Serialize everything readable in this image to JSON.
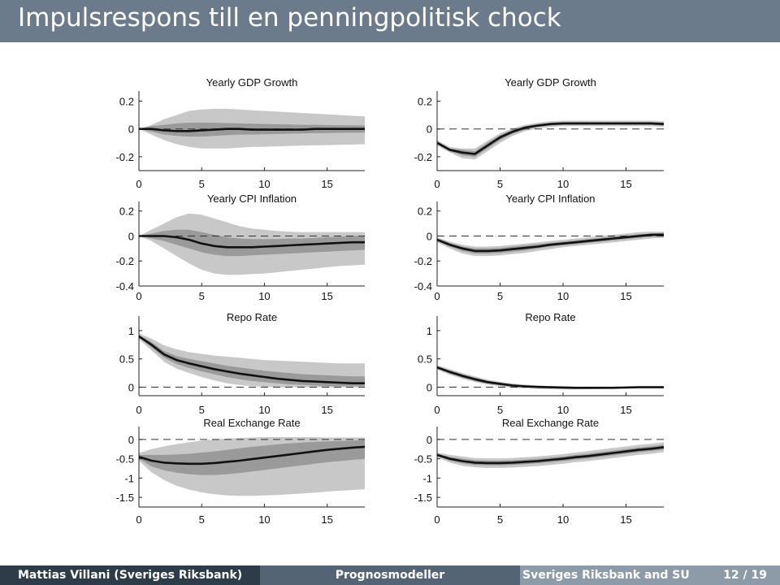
{
  "slide": {
    "title": "Impulsrespons till en penningpolitisk chock",
    "footer": {
      "author": "Mattias Villani (Sveriges Riksbank)",
      "course": "Prognosmodeller",
      "institution": "Sveriges Riksbank and SU",
      "page": "12 / 19"
    }
  },
  "colors": {
    "header": "#6b7b8c",
    "band_outer": "#c8c8c8",
    "band_inner": "#9a9a9a",
    "line": "#111111"
  },
  "chart_data": [
    {
      "type": "line",
      "title": "Yearly GDP Growth",
      "ylim": [
        -0.3,
        0.25
      ],
      "yticks": [
        -0.2,
        0,
        0.2
      ],
      "yticklabels": [
        "-0.2",
        "0",
        "0.2"
      ],
      "xticks": [
        0,
        5,
        10,
        15
      ],
      "xlim": [
        0,
        18
      ],
      "x": [
        0,
        1,
        2,
        3,
        4,
        5,
        6,
        7,
        8,
        9,
        10,
        11,
        12,
        13,
        14,
        15,
        16,
        17,
        18
      ],
      "median": [
        0,
        0,
        -0.01,
        -0.015,
        -0.015,
        -0.01,
        -0.005,
        0,
        0,
        -0.005,
        -0.005,
        -0.005,
        -0.005,
        -0.005,
        0,
        0,
        0,
        0,
        0
      ],
      "inner_low": [
        0,
        -0.02,
        -0.04,
        -0.05,
        -0.055,
        -0.055,
        -0.05,
        -0.045,
        -0.04,
        -0.04,
        -0.038,
        -0.036,
        -0.034,
        -0.032,
        -0.03,
        -0.03,
        -0.028,
        -0.027,
        -0.026
      ],
      "inner_high": [
        0,
        0.02,
        0.03,
        0.04,
        0.045,
        0.045,
        0.045,
        0.042,
        0.04,
        0.038,
        0.036,
        0.034,
        0.032,
        0.03,
        0.03,
        0.028,
        0.027,
        0.026,
        0.025
      ],
      "outer_low": [
        0,
        -0.04,
        -0.08,
        -0.11,
        -0.13,
        -0.14,
        -0.14,
        -0.14,
        -0.135,
        -0.13,
        -0.128,
        -0.125,
        -0.122,
        -0.12,
        -0.118,
        -0.116,
        -0.114,
        -0.112,
        -0.11
      ],
      "outer_high": [
        0,
        0.03,
        0.07,
        0.1,
        0.13,
        0.14,
        0.145,
        0.145,
        0.14,
        0.135,
        0.13,
        0.125,
        0.12,
        0.115,
        0.11,
        0.105,
        0.1,
        0.095,
        0.09
      ]
    },
    {
      "type": "line",
      "title": "Yearly GDP Growth",
      "ylim": [
        -0.3,
        0.25
      ],
      "yticks": [
        -0.2,
        0,
        0.2
      ],
      "yticklabels": [
        "-0.2",
        "0",
        "0.2"
      ],
      "xticks": [
        0,
        5,
        10,
        15
      ],
      "xlim": [
        0,
        18
      ],
      "x": [
        0,
        1,
        2,
        3,
        4,
        5,
        6,
        7,
        8,
        9,
        10,
        11,
        12,
        13,
        14,
        15,
        16,
        17,
        18
      ],
      "median": [
        -0.1,
        -0.15,
        -0.17,
        -0.18,
        -0.12,
        -0.06,
        -0.02,
        0.01,
        0.025,
        0.035,
        0.04,
        0.04,
        0.04,
        0.04,
        0.04,
        0.04,
        0.04,
        0.04,
        0.035
      ],
      "inner_low": [
        -0.11,
        -0.16,
        -0.19,
        -0.2,
        -0.14,
        -0.08,
        -0.035,
        -0.005,
        0.015,
        0.025,
        0.03,
        0.03,
        0.03,
        0.03,
        0.03,
        0.03,
        0.03,
        0.03,
        0.025
      ],
      "inner_high": [
        -0.09,
        -0.14,
        -0.15,
        -0.16,
        -0.1,
        -0.045,
        -0.005,
        0.02,
        0.035,
        0.045,
        0.05,
        0.05,
        0.05,
        0.05,
        0.05,
        0.05,
        0.05,
        0.05,
        0.045
      ],
      "outer_low": [
        -0.12,
        -0.17,
        -0.21,
        -0.22,
        -0.16,
        -0.1,
        -0.05,
        -0.015,
        0.005,
        0.015,
        0.02,
        0.02,
        0.02,
        0.02,
        0.02,
        0.02,
        0.02,
        0.02,
        0.015
      ],
      "outer_high": [
        -0.08,
        -0.13,
        -0.14,
        -0.14,
        -0.085,
        -0.03,
        0.005,
        0.03,
        0.045,
        0.055,
        0.06,
        0.06,
        0.06,
        0.06,
        0.06,
        0.06,
        0.06,
        0.06,
        0.055
      ]
    },
    {
      "type": "line",
      "title": "Yearly CPI Inflation",
      "ylim": [
        -0.4,
        0.25
      ],
      "yticks": [
        -0.4,
        -0.2,
        0,
        0.2
      ],
      "yticklabels": [
        "-0.4",
        "-0.2",
        "0",
        "0.2"
      ],
      "xticks": [
        0,
        5,
        10,
        15
      ],
      "xlim": [
        0,
        18
      ],
      "x": [
        0,
        1,
        2,
        3,
        4,
        5,
        6,
        7,
        8,
        9,
        10,
        11,
        12,
        13,
        14,
        15,
        16,
        17,
        18
      ],
      "median": [
        0,
        0,
        0,
        -0.01,
        -0.03,
        -0.06,
        -0.08,
        -0.09,
        -0.09,
        -0.09,
        -0.085,
        -0.08,
        -0.075,
        -0.07,
        -0.065,
        -0.06,
        -0.055,
        -0.05,
        -0.05
      ],
      "inner_low": [
        0,
        -0.02,
        -0.04,
        -0.07,
        -0.1,
        -0.13,
        -0.15,
        -0.16,
        -0.16,
        -0.155,
        -0.15,
        -0.145,
        -0.14,
        -0.135,
        -0.13,
        -0.125,
        -0.12,
        -0.115,
        -0.11
      ],
      "inner_high": [
        0,
        0.02,
        0.04,
        0.05,
        0.05,
        0.03,
        0.01,
        -0.01,
        -0.02,
        -0.025,
        -0.025,
        -0.025,
        -0.02,
        -0.02,
        -0.015,
        -0.01,
        -0.005,
        0,
        0
      ],
      "outer_low": [
        0,
        -0.04,
        -0.1,
        -0.16,
        -0.22,
        -0.27,
        -0.3,
        -0.31,
        -0.31,
        -0.305,
        -0.3,
        -0.29,
        -0.28,
        -0.27,
        -0.26,
        -0.25,
        -0.24,
        -0.235,
        -0.23
      ],
      "outer_high": [
        0,
        0.05,
        0.1,
        0.15,
        0.18,
        0.17,
        0.14,
        0.11,
        0.08,
        0.06,
        0.05,
        0.04,
        0.035,
        0.03,
        0.03,
        0.03,
        0.03,
        0.03,
        0.03
      ]
    },
    {
      "type": "line",
      "title": "Yearly CPI Inflation",
      "ylim": [
        -0.4,
        0.25
      ],
      "yticks": [
        -0.4,
        -0.2,
        0,
        0.2
      ],
      "yticklabels": [
        "-0.4",
        "-0.2",
        "0",
        "0.2"
      ],
      "xticks": [
        0,
        5,
        10,
        15
      ],
      "xlim": [
        0,
        18
      ],
      "x": [
        0,
        1,
        2,
        3,
        4,
        5,
        6,
        7,
        8,
        9,
        10,
        11,
        12,
        13,
        14,
        15,
        16,
        17,
        18
      ],
      "median": [
        -0.03,
        -0.07,
        -0.1,
        -0.12,
        -0.12,
        -0.115,
        -0.105,
        -0.095,
        -0.085,
        -0.07,
        -0.06,
        -0.05,
        -0.04,
        -0.03,
        -0.02,
        -0.01,
        0,
        0.01,
        0.01
      ],
      "inner_low": [
        -0.04,
        -0.085,
        -0.12,
        -0.14,
        -0.14,
        -0.135,
        -0.125,
        -0.115,
        -0.1,
        -0.085,
        -0.075,
        -0.065,
        -0.055,
        -0.045,
        -0.035,
        -0.025,
        -0.015,
        -0.005,
        -0.005
      ],
      "inner_high": [
        -0.02,
        -0.055,
        -0.085,
        -0.1,
        -0.1,
        -0.095,
        -0.085,
        -0.075,
        -0.065,
        -0.055,
        -0.045,
        -0.035,
        -0.025,
        -0.015,
        -0.005,
        0.005,
        0.015,
        0.02,
        0.025
      ],
      "outer_low": [
        -0.05,
        -0.1,
        -0.14,
        -0.16,
        -0.16,
        -0.155,
        -0.145,
        -0.135,
        -0.12,
        -0.105,
        -0.09,
        -0.08,
        -0.07,
        -0.06,
        -0.05,
        -0.04,
        -0.03,
        -0.02,
        -0.015
      ],
      "outer_high": [
        -0.01,
        -0.045,
        -0.07,
        -0.085,
        -0.085,
        -0.08,
        -0.07,
        -0.06,
        -0.05,
        -0.04,
        -0.03,
        -0.02,
        -0.01,
        0,
        0.01,
        0.02,
        0.03,
        0.035,
        0.035
      ]
    },
    {
      "type": "line",
      "title": "Repo Rate",
      "ylim": [
        -0.15,
        1.2
      ],
      "yticks": [
        0,
        0.5,
        1
      ],
      "yticklabels": [
        "0",
        "0.5",
        "1"
      ],
      "xticks": [
        0,
        5,
        10,
        15
      ],
      "xlim": [
        0,
        18
      ],
      "x": [
        0,
        1,
        2,
        3,
        4,
        5,
        6,
        7,
        8,
        9,
        10,
        11,
        12,
        13,
        14,
        15,
        16,
        17,
        18
      ],
      "median": [
        0.9,
        0.75,
        0.58,
        0.48,
        0.42,
        0.37,
        0.32,
        0.28,
        0.24,
        0.21,
        0.18,
        0.15,
        0.13,
        0.11,
        0.1,
        0.09,
        0.08,
        0.07,
        0.07
      ],
      "inner_low": [
        0.88,
        0.7,
        0.52,
        0.41,
        0.34,
        0.28,
        0.23,
        0.18,
        0.14,
        0.11,
        0.09,
        0.07,
        0.05,
        0.04,
        0.03,
        0.02,
        0.02,
        0.02,
        0.02
      ],
      "inner_high": [
        0.92,
        0.8,
        0.64,
        0.55,
        0.5,
        0.46,
        0.42,
        0.38,
        0.35,
        0.32,
        0.29,
        0.27,
        0.25,
        0.23,
        0.22,
        0.21,
        0.2,
        0.19,
        0.19
      ],
      "outer_low": [
        0.85,
        0.65,
        0.45,
        0.33,
        0.25,
        0.18,
        0.12,
        0.07,
        0.04,
        0.02,
        0.01,
        0,
        0,
        0,
        0,
        0,
        0,
        0,
        0
      ],
      "outer_high": [
        0.95,
        0.86,
        0.74,
        0.67,
        0.62,
        0.59,
        0.56,
        0.54,
        0.52,
        0.5,
        0.48,
        0.47,
        0.46,
        0.45,
        0.44,
        0.43,
        0.42,
        0.42,
        0.42
      ]
    },
    {
      "type": "line",
      "title": "Repo Rate",
      "ylim": [
        -0.15,
        1.2
      ],
      "yticks": [
        0,
        0.5,
        1
      ],
      "yticklabels": [
        "0",
        "0.5",
        "1"
      ],
      "xticks": [
        0,
        5,
        10,
        15
      ],
      "xlim": [
        0,
        18
      ],
      "x": [
        0,
        1,
        2,
        3,
        4,
        5,
        6,
        7,
        8,
        9,
        10,
        11,
        12,
        13,
        14,
        15,
        16,
        17,
        18
      ],
      "median": [
        0.35,
        0.27,
        0.2,
        0.14,
        0.09,
        0.06,
        0.03,
        0.015,
        0.005,
        0,
        -0.005,
        -0.01,
        -0.01,
        -0.01,
        -0.01,
        -0.005,
        0,
        0,
        0
      ],
      "inner_low": [
        0.33,
        0.24,
        0.17,
        0.11,
        0.065,
        0.035,
        0.01,
        -0.005,
        -0.015,
        -0.02,
        -0.025,
        -0.025,
        -0.025,
        -0.02,
        -0.02,
        -0.015,
        -0.01,
        -0.01,
        -0.01
      ],
      "inner_high": [
        0.37,
        0.3,
        0.23,
        0.17,
        0.115,
        0.08,
        0.05,
        0.03,
        0.02,
        0.01,
        0.005,
        0,
        0,
        0,
        0,
        0.005,
        0.01,
        0.01,
        0.01
      ],
      "outer_low": [
        0.31,
        0.22,
        0.15,
        0.09,
        0.045,
        0.015,
        -0.01,
        -0.02,
        -0.03,
        -0.035,
        -0.04,
        -0.04,
        -0.035,
        -0.03,
        -0.025,
        -0.02,
        -0.015,
        -0.01,
        -0.01
      ],
      "outer_high": [
        0.39,
        0.32,
        0.25,
        0.19,
        0.135,
        0.095,
        0.065,
        0.045,
        0.03,
        0.02,
        0.015,
        0.01,
        0.01,
        0.01,
        0.01,
        0.01,
        0.015,
        0.015,
        0.015
      ]
    },
    {
      "type": "line",
      "title": "Real Exchange Rate",
      "ylim": [
        -1.75,
        0.25
      ],
      "yticks": [
        -1.5,
        -1,
        -0.5,
        0
      ],
      "yticklabels": [
        "-1.5",
        "-1",
        "-0.5",
        "0"
      ],
      "xticks": [
        0,
        5,
        10,
        15
      ],
      "xlim": [
        0,
        18
      ],
      "x": [
        0,
        1,
        2,
        3,
        4,
        5,
        6,
        7,
        8,
        9,
        10,
        11,
        12,
        13,
        14,
        15,
        16,
        17,
        18
      ],
      "median": [
        -0.45,
        -0.55,
        -0.6,
        -0.62,
        -0.63,
        -0.63,
        -0.61,
        -0.58,
        -0.55,
        -0.51,
        -0.47,
        -0.43,
        -0.39,
        -0.35,
        -0.31,
        -0.27,
        -0.24,
        -0.21,
        -0.19
      ],
      "inner_low": [
        -0.5,
        -0.7,
        -0.8,
        -0.86,
        -0.9,
        -0.92,
        -0.92,
        -0.9,
        -0.87,
        -0.83,
        -0.79,
        -0.75,
        -0.71,
        -0.67,
        -0.63,
        -0.59,
        -0.56,
        -0.53,
        -0.5
      ],
      "inner_high": [
        -0.4,
        -0.4,
        -0.4,
        -0.39,
        -0.37,
        -0.34,
        -0.31,
        -0.27,
        -0.23,
        -0.19,
        -0.16,
        -0.13,
        -0.1,
        -0.08,
        -0.06,
        -0.05,
        -0.04,
        -0.03,
        -0.02
      ],
      "outer_low": [
        -0.55,
        -0.85,
        -1.05,
        -1.2,
        -1.3,
        -1.37,
        -1.42,
        -1.45,
        -1.46,
        -1.46,
        -1.45,
        -1.44,
        -1.42,
        -1.4,
        -1.38,
        -1.35,
        -1.33,
        -1.31,
        -1.29
      ],
      "outer_high": [
        -0.35,
        -0.25,
        -0.18,
        -0.12,
        -0.07,
        -0.03,
        0,
        0.02,
        0.04,
        0.05,
        0.06,
        0.06,
        0.06,
        0.06,
        0.06,
        0.05,
        0.05,
        0.05,
        0.05
      ]
    },
    {
      "type": "line",
      "title": "Real Exchange Rate",
      "ylim": [
        -1.75,
        0.25
      ],
      "yticks": [
        -1.5,
        -1,
        -0.5,
        0
      ],
      "yticklabels": [
        "-1.5",
        "-1",
        "-0.5",
        "0"
      ],
      "xticks": [
        0,
        5,
        10,
        15
      ],
      "xlim": [
        0,
        18
      ],
      "x": [
        0,
        1,
        2,
        3,
        4,
        5,
        6,
        7,
        8,
        9,
        10,
        11,
        12,
        13,
        14,
        15,
        16,
        17,
        18
      ],
      "median": [
        -0.4,
        -0.5,
        -0.56,
        -0.6,
        -0.61,
        -0.61,
        -0.6,
        -0.58,
        -0.56,
        -0.53,
        -0.5,
        -0.46,
        -0.43,
        -0.39,
        -0.35,
        -0.31,
        -0.27,
        -0.24,
        -0.2
      ],
      "inner_low": [
        -0.43,
        -0.55,
        -0.62,
        -0.66,
        -0.67,
        -0.67,
        -0.66,
        -0.64,
        -0.62,
        -0.59,
        -0.56,
        -0.52,
        -0.49,
        -0.45,
        -0.41,
        -0.37,
        -0.33,
        -0.3,
        -0.26
      ],
      "inner_high": [
        -0.37,
        -0.45,
        -0.5,
        -0.54,
        -0.55,
        -0.55,
        -0.54,
        -0.52,
        -0.5,
        -0.47,
        -0.44,
        -0.4,
        -0.37,
        -0.33,
        -0.29,
        -0.25,
        -0.21,
        -0.18,
        -0.14
      ],
      "outer_low": [
        -0.46,
        -0.6,
        -0.68,
        -0.72,
        -0.74,
        -0.74,
        -0.73,
        -0.71,
        -0.69,
        -0.66,
        -0.63,
        -0.59,
        -0.56,
        -0.52,
        -0.48,
        -0.44,
        -0.4,
        -0.37,
        -0.33
      ],
      "outer_high": [
        -0.34,
        -0.4,
        -0.44,
        -0.48,
        -0.49,
        -0.49,
        -0.48,
        -0.46,
        -0.44,
        -0.41,
        -0.38,
        -0.34,
        -0.3,
        -0.26,
        -0.22,
        -0.18,
        -0.14,
        -0.11,
        -0.07
      ]
    }
  ]
}
